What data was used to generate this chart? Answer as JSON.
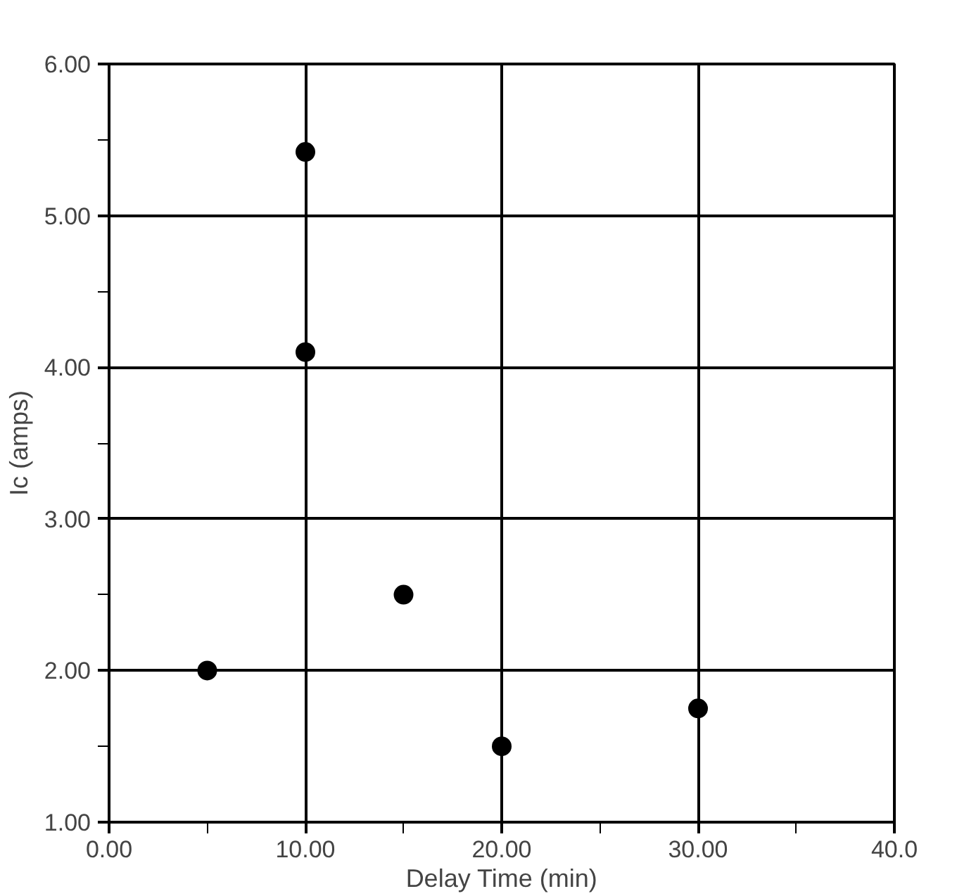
{
  "chart_data": {
    "type": "scatter",
    "xlabel": "Delay Time (min)",
    "ylabel": "Ic (amps)",
    "x": [
      5,
      10,
      10,
      15,
      20,
      30
    ],
    "series": [
      {
        "color": "#000000",
        "values": [
          2.0,
          5.42,
          4.1,
          2.5,
          1.5,
          1.75
        ]
      }
    ],
    "marker": "circle",
    "grid": true,
    "xlim": [
      0,
      40
    ],
    "ylim": [
      1,
      6
    ],
    "xticks": [
      {
        "value": 0,
        "label": "0.00"
      },
      {
        "value": 5,
        "label": null
      },
      {
        "value": 10,
        "label": "10.00"
      },
      {
        "value": 15,
        "label": null
      },
      {
        "value": 20,
        "label": "20.00"
      },
      {
        "value": 25,
        "label": null
      },
      {
        "value": 30,
        "label": "30.00"
      },
      {
        "value": 35,
        "label": null
      },
      {
        "value": 40,
        "label": "40.0"
      }
    ],
    "yticks": [
      {
        "value": 1,
        "label": "1.00"
      },
      {
        "value": 1.5,
        "label": null
      },
      {
        "value": 2,
        "label": "2.00"
      },
      {
        "value": 2.5,
        "label": null
      },
      {
        "value": 3,
        "label": "3.00"
      },
      {
        "value": 3.5,
        "label": null
      },
      {
        "value": 4,
        "label": "4.00"
      },
      {
        "value": 4.5,
        "label": null
      },
      {
        "value": 5,
        "label": "5.00"
      },
      {
        "value": 5.5,
        "label": null
      },
      {
        "value": 6,
        "label": "6.00"
      }
    ]
  }
}
